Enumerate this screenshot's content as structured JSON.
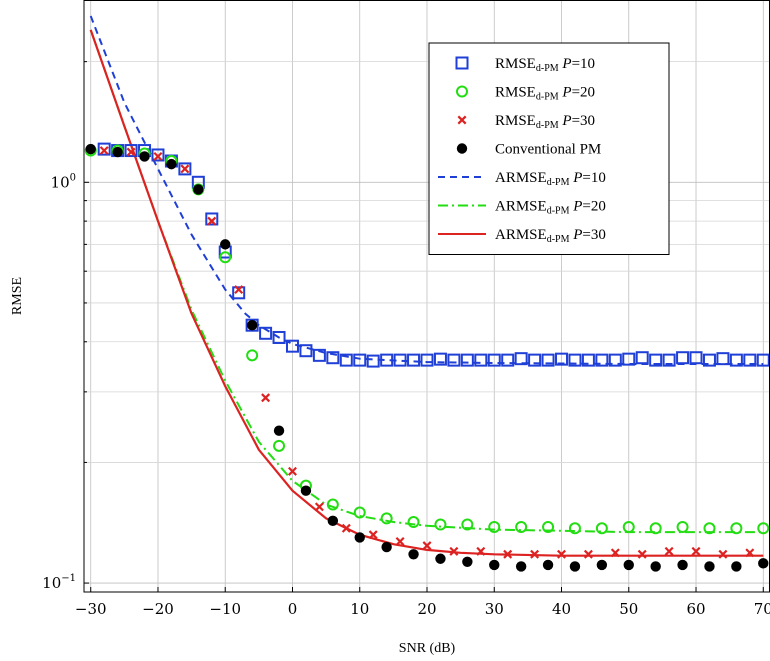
{
  "chart_data": {
    "type": "line",
    "xlabel": "SNR (dB)",
    "ylabel": "RMSE",
    "xlim": [
      -31,
      71
    ],
    "ylim": [
      0.095,
      2.85
    ],
    "yscale": "log",
    "grid": true,
    "legend_position": "top-right",
    "x_ticks": [
      -30,
      -20,
      -10,
      0,
      10,
      20,
      30,
      40,
      50,
      60,
      70
    ],
    "x_tick_labels": [
      "−30",
      "−20",
      "−10",
      "0",
      "10",
      "20",
      "30",
      "40",
      "50",
      "60",
      "70"
    ],
    "y_ticks": [
      {
        "value": 1,
        "base": "10",
        "exp": "0"
      },
      {
        "value": 0.1,
        "base": "10",
        "exp": "−1"
      }
    ],
    "series": [
      {
        "name": "RMSE_d-PM P=10",
        "legend_main": "RMSE",
        "legend_sub": "d-PM",
        "legend_var": "P",
        "legend_val": "=10",
        "kind": "marker",
        "marker": "square",
        "color": "#1f3fd6",
        "x": [
          -28,
          -26,
          -24,
          -22,
          -20,
          -18,
          -16,
          -14,
          -12,
          -10,
          -8,
          -6,
          -4,
          -2,
          0,
          2,
          4,
          6,
          8,
          10,
          12,
          14,
          16,
          18,
          20,
          22,
          24,
          26,
          28,
          30,
          32,
          34,
          36,
          38,
          40,
          42,
          44,
          46,
          48,
          50,
          52,
          54,
          56,
          58,
          60,
          62,
          64,
          66,
          68,
          70
        ],
        "y": [
          1.21,
          1.2,
          1.2,
          1.2,
          1.17,
          1.13,
          1.08,
          1.0,
          0.81,
          0.67,
          0.53,
          0.44,
          0.42,
          0.41,
          0.39,
          0.38,
          0.37,
          0.365,
          0.36,
          0.36,
          0.358,
          0.36,
          0.36,
          0.36,
          0.36,
          0.362,
          0.36,
          0.36,
          0.36,
          0.36,
          0.36,
          0.363,
          0.36,
          0.36,
          0.362,
          0.36,
          0.36,
          0.36,
          0.36,
          0.362,
          0.365,
          0.36,
          0.36,
          0.365,
          0.365,
          0.36,
          0.363,
          0.36,
          0.36,
          0.36
        ]
      },
      {
        "name": "RMSE_d-PM P=20",
        "legend_main": "RMSE",
        "legend_sub": "d-PM",
        "legend_var": "P",
        "legend_val": "=20",
        "kind": "marker",
        "marker": "circle",
        "color": "#22dd11",
        "x": [
          -30,
          -26,
          -22,
          -18,
          -14,
          -10,
          -6,
          -2,
          2,
          6,
          10,
          14,
          18,
          22,
          26,
          30,
          34,
          38,
          42,
          46,
          50,
          54,
          58,
          62,
          66,
          70
        ],
        "y": [
          1.2,
          1.2,
          1.18,
          1.13,
          0.96,
          0.65,
          0.37,
          0.22,
          0.175,
          0.157,
          0.15,
          0.145,
          0.142,
          0.14,
          0.14,
          0.138,
          0.138,
          0.138,
          0.137,
          0.137,
          0.138,
          0.137,
          0.138,
          0.137,
          0.137,
          0.137
        ]
      },
      {
        "name": "RMSE_d-PM P=30",
        "legend_main": "RMSE",
        "legend_sub": "d-PM",
        "legend_var": "P",
        "legend_val": "=30",
        "kind": "marker",
        "marker": "cross",
        "color": "#dd2222",
        "x": [
          -28,
          -24,
          -20,
          -16,
          -12,
          -8,
          -4,
          0,
          4,
          8,
          12,
          16,
          20,
          24,
          28,
          32,
          36,
          40,
          44,
          48,
          52,
          56,
          60,
          64,
          68
        ],
        "y": [
          1.2,
          1.19,
          1.16,
          1.08,
          0.8,
          0.54,
          0.29,
          0.19,
          0.155,
          0.137,
          0.132,
          0.127,
          0.124,
          0.12,
          0.12,
          0.118,
          0.118,
          0.118,
          0.118,
          0.119,
          0.118,
          0.12,
          0.12,
          0.118,
          0.119
        ]
      },
      {
        "name": "Conventional PM",
        "legend_main": "Conventional PM",
        "legend_sub": "",
        "legend_var": "",
        "legend_val": "",
        "kind": "marker",
        "marker": "dot",
        "color": "#000000",
        "x": [
          -30,
          -26,
          -22,
          -18,
          -14,
          -10,
          -6,
          -2,
          2,
          6,
          10,
          14,
          18,
          22,
          26,
          30,
          34,
          38,
          42,
          46,
          50,
          54,
          58,
          62,
          66,
          70
        ],
        "y": [
          1.21,
          1.19,
          1.16,
          1.11,
          0.96,
          0.7,
          0.44,
          0.24,
          0.17,
          0.143,
          0.13,
          0.123,
          0.118,
          0.115,
          0.113,
          0.111,
          0.11,
          0.111,
          0.11,
          0.111,
          0.111,
          0.11,
          0.111,
          0.11,
          0.11,
          0.112
        ]
      },
      {
        "name": "ARMSE_d-PM P=10",
        "legend_main": "ARMSE",
        "legend_sub": "d-PM",
        "legend_var": "P",
        "legend_val": "=10",
        "kind": "line",
        "dash": "7,5",
        "color": "#1f3fd6",
        "x": [
          -30,
          -25,
          -20,
          -15,
          -10,
          -7,
          -5,
          -2,
          0,
          5,
          10,
          20,
          30,
          40,
          50,
          60,
          70
        ],
        "y": [
          2.6,
          1.58,
          1.08,
          0.74,
          0.54,
          0.47,
          0.44,
          0.41,
          0.395,
          0.375,
          0.363,
          0.356,
          0.354,
          0.353,
          0.352,
          0.352,
          0.352
        ]
      },
      {
        "name": "ARMSE_d-PM P=20",
        "legend_main": "ARMSE",
        "legend_sub": "d-PM",
        "legend_var": "P",
        "legend_val": "=20",
        "kind": "line",
        "dash": "10,4,2,4",
        "color": "#22dd11",
        "x": [
          -30,
          -25,
          -20,
          -15,
          -10,
          -5,
          0,
          5,
          10,
          15,
          20,
          30,
          40,
          50,
          60,
          70
        ],
        "y": [
          2.4,
          1.38,
          0.8,
          0.48,
          0.32,
          0.225,
          0.18,
          0.157,
          0.147,
          0.142,
          0.139,
          0.136,
          0.135,
          0.134,
          0.134,
          0.134
        ]
      },
      {
        "name": "ARMSE_d-PM P=30",
        "legend_main": "ARMSE",
        "legend_sub": "d-PM",
        "legend_var": "P",
        "legend_val": "=30",
        "kind": "line",
        "dash": "",
        "color": "#dd2222",
        "x": [
          -30,
          -25,
          -20,
          -15,
          -10,
          -5,
          0,
          5,
          10,
          15,
          20,
          25,
          30,
          40,
          50,
          60,
          70
        ],
        "y": [
          2.4,
          1.38,
          0.8,
          0.47,
          0.31,
          0.215,
          0.17,
          0.145,
          0.132,
          0.125,
          0.121,
          0.119,
          0.118,
          0.117,
          0.117,
          0.117,
          0.117
        ]
      }
    ]
  }
}
